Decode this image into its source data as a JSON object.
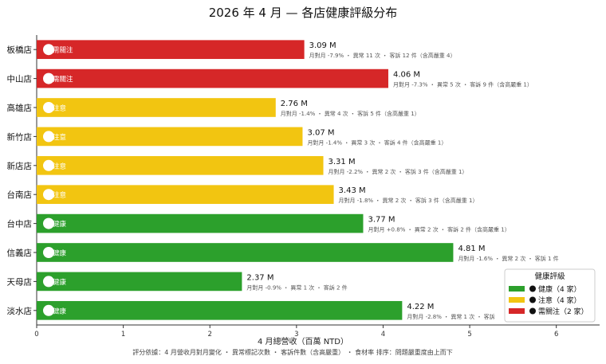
{
  "chart_data": {
    "type": "bar",
    "orientation": "horizontal",
    "title": "2026 年 4 月 — 各店健康評級分布",
    "xlabel": "4 月總營收（百萬 NTD）",
    "footnote": "評分依據：4 月營收月對月變化 ・ 異常標記次數 ・ 客訴件數（含高嚴重） ・ 食材率      排序：問題嚴重度由上而下",
    "xlim": [
      0,
      6.5
    ],
    "xticks": [
      "0",
      "1",
      "2",
      "3",
      "4",
      "5",
      "6"
    ],
    "unit_suffix": " M",
    "grid": false,
    "legend": {
      "title": "健康評級",
      "position": "lower-right",
      "items": [
        {
          "label": "健康（4 家）",
          "color": "#2ca02c"
        },
        {
          "label": "注意（4 家）",
          "color": "#f2c511"
        },
        {
          "label": "需關注（2 家）",
          "color": "#d62728"
        }
      ]
    },
    "categories": [
      "板橋店",
      "中山店",
      "高雄店",
      "新竹店",
      "新店店",
      "台南店",
      "台中店",
      "信義店",
      "天母店",
      "淡水店"
    ],
    "values": [
      3.09,
      4.06,
      2.76,
      3.07,
      3.31,
      3.43,
      3.77,
      4.81,
      2.37,
      4.22
    ],
    "value_labels": [
      "3.09 M",
      "4.06 M",
      "2.76 M",
      "3.07 M",
      "3.31 M",
      "3.43 M",
      "3.77 M",
      "4.81 M",
      "2.37 M",
      "4.22 M"
    ],
    "status": [
      "需關注",
      "需關注",
      "注意",
      "注意",
      "注意",
      "注意",
      "健康",
      "健康",
      "健康",
      "健康"
    ],
    "status_colors": {
      "需關注": "#d62728",
      "注意": "#f2c511",
      "健康": "#2ca02c"
    },
    "details": [
      "月對月 -7.9%  ・  異常 11 次  ・  客訴 12 件（含高嚴重 4）",
      "月對月 -7.3%  ・  異常 5 次  ・  客訴 9 件（含高嚴重 1）",
      "月對月 -1.4%  ・  異常 4 次  ・  客訴 5 件（含高嚴重 1）",
      "月對月 -1.4%  ・  異常 3 次  ・  客訴 4 件（含高嚴重 1）",
      "月對月 -2.2%  ・  異常 2 次  ・  客訴 3 件（含高嚴重 1）",
      "月對月 -1.8%  ・  異常 2 次  ・  客訴 3 件（含高嚴重 1）",
      "月對月 +0.8%  ・  異常 2 次  ・  客訴 2 件（含高嚴重 1）",
      "月對月 -1.6%  ・  異常 2 次  ・  客訴 1 件",
      "月對月 -0.9%  ・  異常 1 次  ・  客訴 2 件",
      "月對月 -2.8%  ・  異常 1 次  ・  客訴"
    ]
  }
}
